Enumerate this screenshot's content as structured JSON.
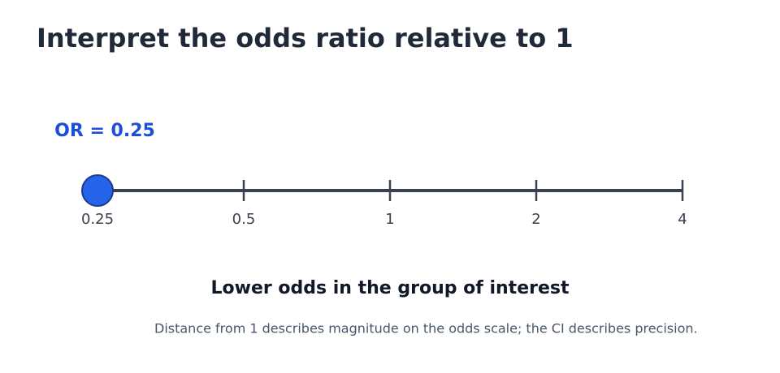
{
  "title": "Interpret the odds ratio relative to 1",
  "slider": {
    "value": 0.25,
    "value_label": "OR = 0.25",
    "xlim": [
      0.25,
      4
    ],
    "xticks": [
      0.25,
      0.5,
      1,
      2,
      4
    ],
    "log_scale": true,
    "color": "#2563eb"
  },
  "interpretation": "Lower odds in the group of interest",
  "note": "Distance from 1 describes magnitude on the odds scale; the CI describes precision."
}
